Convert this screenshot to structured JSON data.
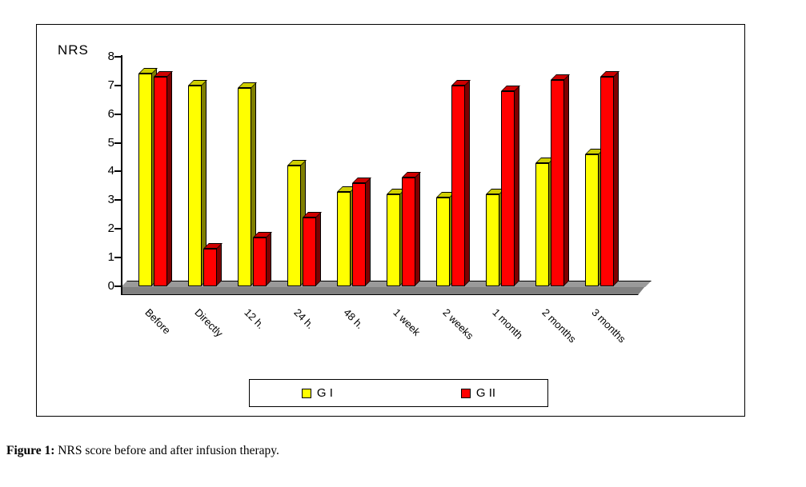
{
  "figure": {
    "caption_label": "Figure 1:",
    "caption_text": " NRS score before and after infusion therapy."
  },
  "chart_data": {
    "type": "bar",
    "style": "3d-column",
    "title": "",
    "xlabel": "",
    "ylabel": "NRS",
    "ylim": [
      0,
      8
    ],
    "ytick_step": 1,
    "grid": false,
    "legend_position": "bottom-center-boxed",
    "categories": [
      "Before",
      "Directly",
      "12 h.",
      "24 h.",
      "48 h.",
      "1 week",
      "2 weeks",
      "1 month",
      "2 months",
      "3 months"
    ],
    "series": [
      {
        "name": "G I",
        "color": "#FFFF00",
        "side_color": "#7F7F00",
        "top_color": "#CFCF00",
        "values": [
          7.4,
          7.0,
          6.9,
          4.2,
          3.3,
          3.2,
          3.1,
          3.2,
          4.3,
          4.6
        ]
      },
      {
        "name": "G II",
        "color": "#FF0000",
        "side_color": "#7F0000",
        "top_color": "#CF0000",
        "values": [
          7.3,
          1.3,
          1.7,
          2.4,
          3.6,
          3.8,
          7.0,
          6.8,
          7.2,
          7.3
        ]
      }
    ],
    "floor_color": "#808080",
    "floor_top_color": "#9A9A9A"
  }
}
